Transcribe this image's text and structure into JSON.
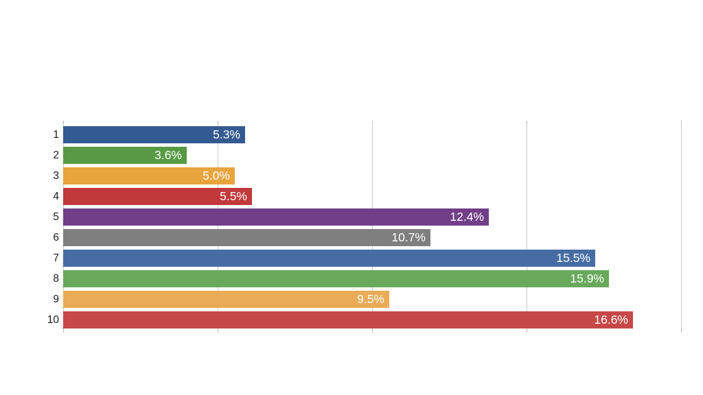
{
  "chart_data": {
    "type": "bar",
    "orientation": "horizontal",
    "title": "",
    "xlabel": "",
    "ylabel": "",
    "categories": [
      "1",
      "2",
      "3",
      "4",
      "5",
      "6",
      "7",
      "8",
      "9",
      "10"
    ],
    "values": [
      5.3,
      3.6,
      5.0,
      5.5,
      12.4,
      10.7,
      15.5,
      15.9,
      9.5,
      16.6
    ],
    "value_labels": [
      "5.3%",
      "3.6%",
      "5.0%",
      "5.5%",
      "12.4%",
      "10.7%",
      "15.5%",
      "15.9%",
      "9.5%",
      "16.6%"
    ],
    "bar_colors": [
      "#345a92",
      "#579a43",
      "#e8a43d",
      "#c0393b",
      "#713f88",
      "#7f7f7f",
      "#466ca3",
      "#68a95c",
      "#e9ab55",
      "#c64848"
    ],
    "xlim": [
      0,
      18
    ],
    "gridline_values": [
      0,
      4.5,
      9,
      13.5,
      18
    ],
    "grid": "vertical-only",
    "legend": "none",
    "colors": {
      "background": "#ffffff",
      "gridline": "#cccccc",
      "tick": "#b3b3b3",
      "value_label_text": "#ffffff",
      "category_label_text": "#1a1a1a"
    }
  }
}
